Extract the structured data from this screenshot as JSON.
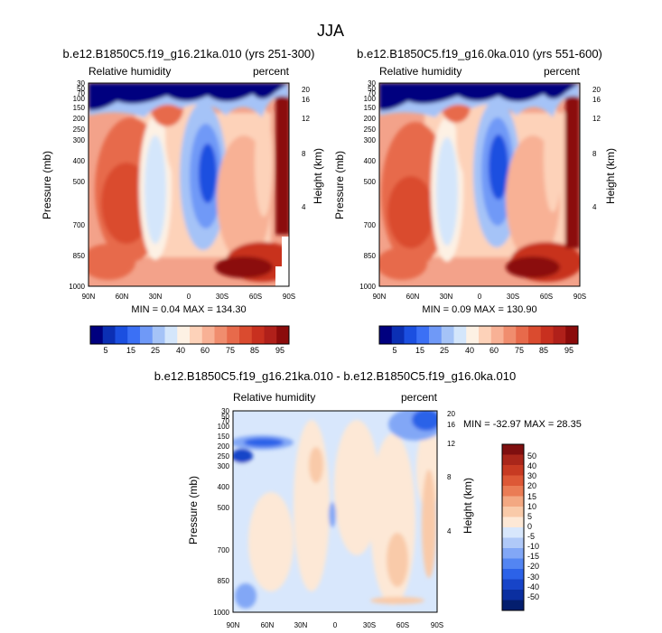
{
  "figure_title": "JJA",
  "colors": {
    "positive_scale": [
      "#00007f",
      "#0b2fb4",
      "#1b4fe0",
      "#3b70f5",
      "#6f99f7",
      "#a5c3f7",
      "#d4e6fb",
      "#fdf1e4",
      "#fdd2b9",
      "#f8b195",
      "#f08d6e",
      "#e76a4b",
      "#da4b2f",
      "#c8301f",
      "#b0201a",
      "#8b0b0b"
    ],
    "diff_scale": [
      "#041e6e",
      "#0b2fa0",
      "#1744c8",
      "#2c62e8",
      "#5385f2",
      "#82a7f6",
      "#b0c9f8",
      "#d8e7fc",
      "#fde8d6",
      "#f9caa9",
      "#f3a882",
      "#ea7c55",
      "#dd5836",
      "#c73a22",
      "#a9261a",
      "#7f0f0f"
    ]
  },
  "chart_data": [
    {
      "type": "heatmap",
      "title": "b.e12.B1850C5.f19_g16.21ka.010 (yrs 251-300)",
      "variable_label": "Relative humidity",
      "units_label": "percent",
      "ylabel": "Pressure (mb)",
      "ylabel_right": "Height (km)",
      "x_tick_labels": [
        "90N",
        "60N",
        "30N",
        "0",
        "30S",
        "60S",
        "90S"
      ],
      "y_tick_labels": [
        "30",
        "50",
        "70",
        "100",
        "150",
        "200",
        "250",
        "300",
        "400",
        "500",
        "700",
        "850",
        "1000"
      ],
      "right_tick_labels": [
        "20",
        "16",
        "12",
        "8",
        "4"
      ],
      "min_max_text": "MIN =   0.04  MAX = 134.30",
      "colorbar_labels": [
        "5",
        "15",
        "25",
        "40",
        "60",
        "75",
        "85",
        "95"
      ]
    },
    {
      "type": "heatmap",
      "title": "b.e12.B1850C5.f19_g16.0ka.010 (yrs 551-600)",
      "variable_label": "Relative humidity",
      "units_label": "percent",
      "ylabel": "Pressure (mb)",
      "ylabel_right": "Height (km)",
      "x_tick_labels": [
        "90N",
        "60N",
        "30N",
        "0",
        "30S",
        "60S",
        "90S"
      ],
      "y_tick_labels": [
        "30",
        "50",
        "70",
        "100",
        "150",
        "200",
        "250",
        "300",
        "400",
        "500",
        "700",
        "850",
        "1000"
      ],
      "right_tick_labels": [
        "20",
        "16",
        "12",
        "8",
        "4"
      ],
      "min_max_text": "MIN =   0.09  MAX = 130.90",
      "colorbar_labels": [
        "5",
        "15",
        "25",
        "40",
        "60",
        "75",
        "85",
        "95"
      ]
    },
    {
      "type": "heatmap",
      "title": "b.e12.B1850C5.f19_g16.21ka.010 - b.e12.B1850C5.f19_g16.0ka.010",
      "variable_label": "Relative humidity",
      "units_label": "percent",
      "ylabel": "Pressure (mb)",
      "ylabel_right": "Height (km)",
      "x_tick_labels": [
        "90N",
        "60N",
        "30N",
        "0",
        "30S",
        "60S",
        "90S"
      ],
      "y_tick_labels": [
        "30",
        "50",
        "70",
        "100",
        "150",
        "200",
        "250",
        "300",
        "400",
        "500",
        "700",
        "850",
        "1000"
      ],
      "right_tick_labels": [
        "20",
        "16",
        "12",
        "8",
        "4"
      ],
      "min_max_text": "MIN = -32.97  MAX =  28.35",
      "colorbar_labels": [
        "50",
        "40",
        "30",
        "20",
        "15",
        "10",
        "5",
        "0",
        "-5",
        "-10",
        "-15",
        "-20",
        "-30",
        "-40",
        "-50"
      ]
    }
  ]
}
